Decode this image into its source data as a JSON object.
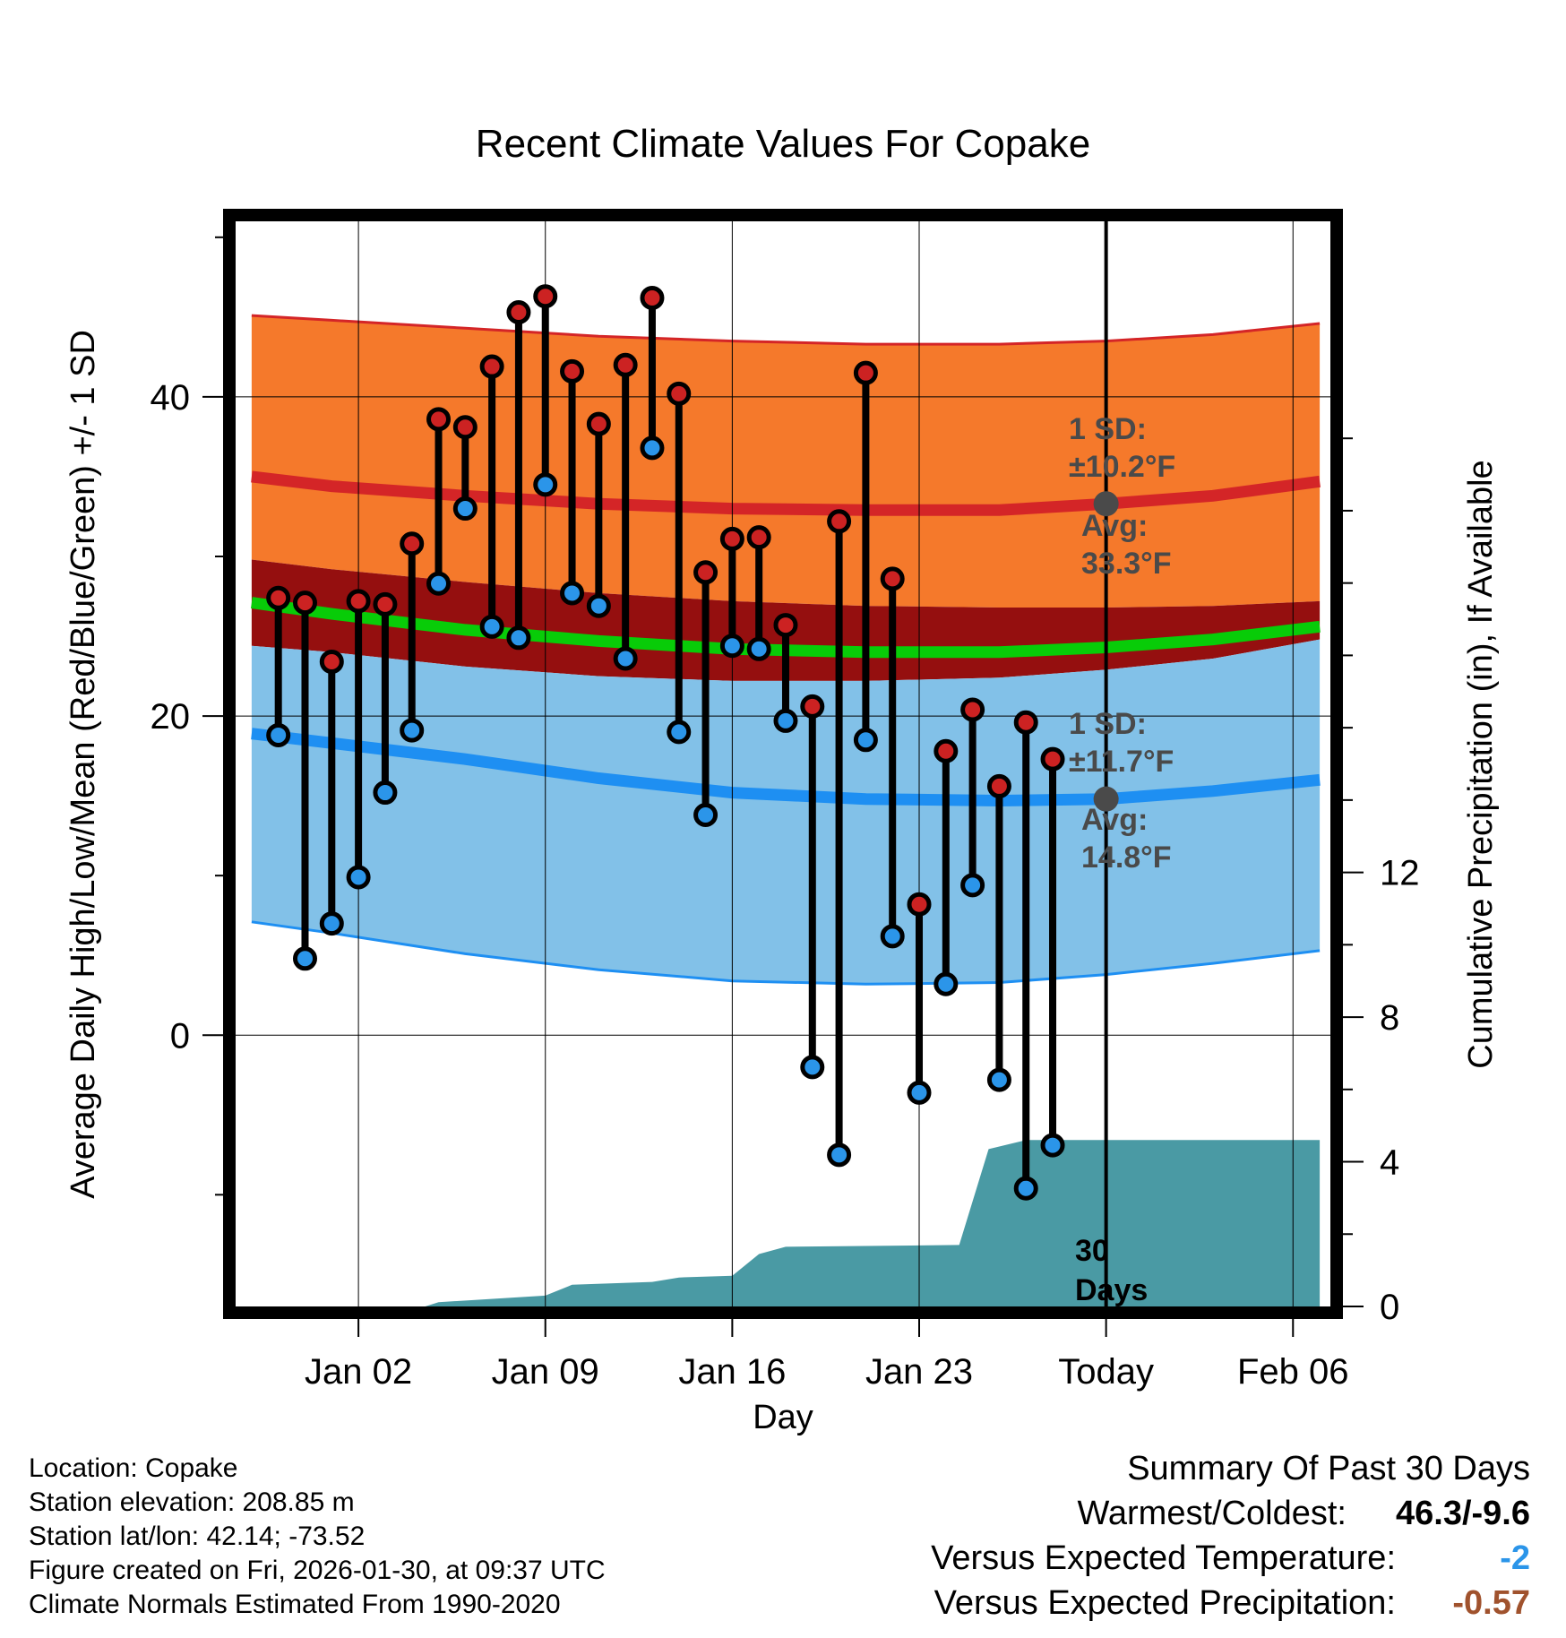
{
  "chart_data": {
    "type": "line",
    "title": "Recent Climate Values For Copake",
    "xlabel": "Day",
    "ylabel": "Average Daily High/Low/Mean (Red/Blue/Green) +/- 1 SD",
    "y2label": "Cumulative Precipitation (in), If Available",
    "ylim": [
      -17,
      51
    ],
    "y2lim": [
      0,
      30
    ],
    "xlim": [
      -3.6,
      37.4
    ],
    "yticks": [
      0,
      20,
      40
    ],
    "y2ticks": [
      0,
      4,
      8,
      12
    ],
    "xticks": [
      {
        "day": 1,
        "label": "Jan 02"
      },
      {
        "day": 8,
        "label": "Jan 09"
      },
      {
        "day": 15,
        "label": "Jan 16"
      },
      {
        "day": 22,
        "label": "Jan 23"
      },
      {
        "day": 29,
        "label": "Today"
      },
      {
        "day": 36,
        "label": "Feb 06"
      }
    ],
    "today_day": 29,
    "normals": {
      "x": [
        -3,
        0,
        5,
        10,
        15,
        20,
        25,
        29,
        33,
        37
      ],
      "high_upper": [
        45.1,
        44.8,
        44.3,
        43.8,
        43.5,
        43.3,
        43.3,
        43.5,
        43.9,
        44.6
      ],
      "high_mean": [
        35.0,
        34.4,
        33.8,
        33.3,
        33.0,
        32.9,
        32.9,
        33.3,
        33.8,
        34.7
      ],
      "high_lower": [
        29.8,
        29.2,
        28.4,
        27.7,
        27.2,
        26.9,
        26.8,
        26.8,
        26.9,
        27.2
      ],
      "mean": [
        27.1,
        26.4,
        25.4,
        24.7,
        24.2,
        24.0,
        24.0,
        24.3,
        24.8,
        25.6
      ],
      "low_upper": [
        24.4,
        24.0,
        23.1,
        22.5,
        22.2,
        22.2,
        22.4,
        22.9,
        23.6,
        24.8
      ],
      "low_mean": [
        18.9,
        18.3,
        17.3,
        16.1,
        15.2,
        14.8,
        14.7,
        14.8,
        15.3,
        16.0
      ],
      "low_lower": [
        7.1,
        6.4,
        5.1,
        4.1,
        3.4,
        3.2,
        3.3,
        3.8,
        4.5,
        5.3
      ]
    },
    "daily": {
      "day": [
        -2,
        -1,
        0,
        1,
        2,
        3,
        4,
        5,
        6,
        7,
        8,
        9,
        10,
        11,
        12,
        13,
        14,
        15,
        16,
        17,
        18,
        19,
        20,
        21,
        22,
        23,
        24,
        25,
        26,
        27,
        28
      ],
      "high": [
        27.4,
        27.1,
        23.4,
        27.2,
        27.0,
        30.8,
        38.6,
        38.1,
        41.9,
        45.3,
        46.3,
        41.6,
        38.3,
        42.0,
        46.2,
        40.2,
        29.0,
        31.1,
        31.2,
        25.7,
        20.6,
        32.2,
        41.5,
        28.6,
        8.2,
        17.8,
        20.4,
        15.6,
        19.6,
        17.3,
        null
      ],
      "low": [
        18.8,
        4.8,
        7.0,
        9.9,
        15.2,
        19.1,
        28.3,
        33.0,
        25.6,
        24.9,
        34.5,
        27.7,
        26.9,
        23.6,
        36.8,
        19.0,
        13.8,
        24.4,
        24.2,
        19.7,
        -2.0,
        -7.5,
        18.5,
        6.2,
        -3.6,
        3.2,
        9.4,
        -2.8,
        -9.6,
        -6.9,
        null
      ]
    },
    "precip": {
      "x": [
        -3,
        1,
        3.5,
        4,
        8,
        9,
        12,
        13,
        15,
        16,
        17,
        23.5,
        24.6,
        26,
        37
      ],
      "cum": [
        0,
        0,
        0,
        0.12,
        0.3,
        0.6,
        0.68,
        0.8,
        0.85,
        1.45,
        1.65,
        1.7,
        4.35,
        4.6,
        4.6
      ]
    },
    "annotations": {
      "high_sd_label": "1 SD:",
      "high_sd_value": "±10.2°F",
      "high_avg_label": "Avg:",
      "high_avg_value": "33.3°F",
      "low_sd_label": "1 SD:",
      "low_sd_value": "±11.7°F",
      "low_avg_label": "Avg:",
      "low_avg_value": "14.8°F",
      "days_line1": "30",
      "days_line2": "Days"
    },
    "colors": {
      "high_band": "#f5792b",
      "high_line": "#d42527",
      "mean_band": "#950f0f",
      "mean_line": "#08cc08",
      "low_band": "#82c1e8",
      "low_line": "#1e8ff2",
      "high_dot": "#cc2222",
      "low_dot": "#2b95e9",
      "precip": "#4a9aa4",
      "avg_dot": "#4a4a4a"
    }
  },
  "footer": {
    "location": "Location: Copake",
    "elevation": "Station elevation: 208.85 m",
    "latlon": "Station lat/lon: 42.14; -73.52",
    "created": "Figure created on Fri, 2026-01-30, at 09:37 UTC",
    "normals": "Climate Normals Estimated From 1990-2020"
  },
  "summary": {
    "title": "Summary Of Past 30 Days",
    "warmest_label": "Warmest/Coldest:",
    "warmest_value": "46.3/-9.6",
    "temp_label": "Versus Expected Temperature:",
    "temp_value": "-2",
    "temp_color": "#2b95e9",
    "precip_label": "Versus Expected Precipitation:",
    "precip_value": "-0.57",
    "precip_color": "#a0522d"
  }
}
